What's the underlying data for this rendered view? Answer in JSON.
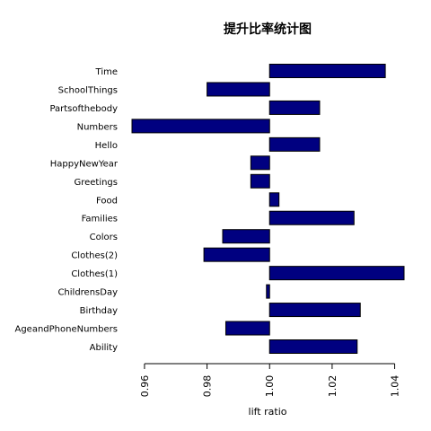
{
  "chart_data": {
    "type": "bar",
    "orientation": "horizontal",
    "title": "提升比率统计图",
    "xlabel": "lift ratio",
    "ylabel": "",
    "categories": [
      "Time",
      "SchoolThings",
      "Partsofthebody",
      "Numbers",
      "Hello",
      "HappyNewYear",
      "Greetings",
      "Food",
      "Families",
      "Colors",
      "Clothes(2)",
      "Clothes(1)",
      "ChildrensDay",
      "Birthday",
      "AgeandPhoneNumbers",
      "Ability"
    ],
    "values": [
      1.037,
      0.98,
      1.016,
      0.956,
      1.016,
      0.994,
      0.994,
      1.003,
      1.027,
      0.985,
      0.979,
      1.043,
      0.999,
      1.029,
      0.986,
      1.028
    ],
    "baseline": 1.0,
    "xlim": [
      0.956,
      1.043
    ],
    "xticks": [
      "0.96",
      "0.98",
      "1.00",
      "1.02",
      "1.04"
    ],
    "grid": false,
    "bar_color": "#000080",
    "bar_border": "#000000"
  }
}
